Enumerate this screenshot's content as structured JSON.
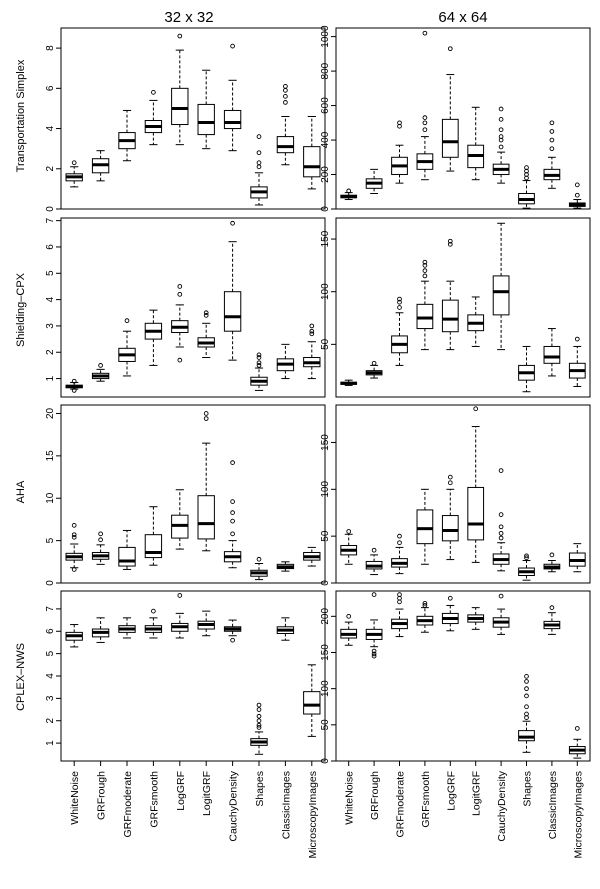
{
  "figure": {
    "column_titles": [
      "32 x 32",
      "64 x 64"
    ],
    "row_labels": [
      "Transportation Simplex",
      "Shielding–CPX",
      "AHA",
      "CPLEX–NWS"
    ],
    "categories": [
      "WhiteNoise",
      "GRFrough",
      "GRFmoderate",
      "GRFsmooth",
      "LogGRF",
      "LogitGRF",
      "CauchyDensity",
      "Shapes",
      "ClassicImages",
      "MicroscopyImages"
    ]
  },
  "chart_data": [
    {
      "type": "boxplot",
      "row": "Transportation Simplex",
      "column": "32 x 32",
      "ylim": [
        0,
        9
      ],
      "yticks": [
        0,
        2,
        4,
        6,
        8
      ],
      "boxes": [
        {
          "q1": 1.4,
          "median": 1.6,
          "q3": 1.75,
          "whisker_low": 1.1,
          "whisker_high": 2.1,
          "outliers": [
            2.3
          ]
        },
        {
          "q1": 1.8,
          "median": 2.2,
          "q3": 2.5,
          "whisker_low": 1.4,
          "whisker_high": 2.9,
          "outliers": []
        },
        {
          "q1": 3.0,
          "median": 3.4,
          "q3": 3.8,
          "whisker_low": 2.4,
          "whisker_high": 4.9,
          "outliers": []
        },
        {
          "q1": 3.8,
          "median": 4.1,
          "q3": 4.4,
          "whisker_low": 3.2,
          "whisker_high": 5.4,
          "outliers": [
            5.8
          ]
        },
        {
          "q1": 4.2,
          "median": 5.0,
          "q3": 6.0,
          "whisker_low": 3.2,
          "whisker_high": 7.9,
          "outliers": [
            8.6
          ]
        },
        {
          "q1": 3.7,
          "median": 4.3,
          "q3": 5.2,
          "whisker_low": 3.0,
          "whisker_high": 6.9,
          "outliers": []
        },
        {
          "q1": 4.0,
          "median": 4.3,
          "q3": 4.9,
          "whisker_low": 2.9,
          "whisker_high": 6.4,
          "outliers": [
            8.1
          ]
        },
        {
          "q1": 0.55,
          "median": 0.85,
          "q3": 1.1,
          "whisker_low": 0.2,
          "whisker_high": 1.8,
          "outliers": [
            2.1,
            2.3,
            2.8,
            3.6
          ]
        },
        {
          "q1": 2.8,
          "median": 3.1,
          "q3": 3.6,
          "whisker_low": 2.2,
          "whisker_high": 4.6,
          "outliers": [
            5.3,
            5.6,
            5.9,
            6.1
          ]
        },
        {
          "q1": 1.6,
          "median": 2.1,
          "q3": 3.1,
          "whisker_low": 1.0,
          "whisker_high": 4.6,
          "outliers": []
        }
      ]
    },
    {
      "type": "boxplot",
      "row": "Transportation Simplex",
      "column": "64 x 64",
      "ylim": [
        0,
        1050
      ],
      "yticks": [
        0,
        200,
        400,
        600,
        800,
        1000
      ],
      "boxes": [
        {
          "q1": 65,
          "median": 72,
          "q3": 80,
          "whisker_low": 55,
          "whisker_high": 95,
          "outliers": [
            105
          ]
        },
        {
          "q1": 120,
          "median": 150,
          "q3": 175,
          "whisker_low": 90,
          "whisker_high": 230,
          "outliers": []
        },
        {
          "q1": 200,
          "median": 250,
          "q3": 300,
          "whisker_low": 150,
          "whisker_high": 370,
          "outliers": [
            480,
            500
          ]
        },
        {
          "q1": 230,
          "median": 275,
          "q3": 320,
          "whisker_low": 170,
          "whisker_high": 420,
          "outliers": [
            460,
            500,
            530,
            1020
          ]
        },
        {
          "q1": 300,
          "median": 390,
          "q3": 520,
          "whisker_low": 220,
          "whisker_high": 780,
          "outliers": [
            930
          ]
        },
        {
          "q1": 240,
          "median": 310,
          "q3": 370,
          "whisker_low": 170,
          "whisker_high": 590,
          "outliers": []
        },
        {
          "q1": 200,
          "median": 230,
          "q3": 260,
          "whisker_low": 150,
          "whisker_high": 330,
          "outliers": [
            360,
            400,
            420,
            460,
            520,
            580
          ]
        },
        {
          "q1": 30,
          "median": 55,
          "q3": 90,
          "whisker_low": 5,
          "whisker_high": 165,
          "outliers": [
            180,
            200,
            220,
            240
          ]
        },
        {
          "q1": 170,
          "median": 195,
          "q3": 230,
          "whisker_low": 120,
          "whisker_high": 300,
          "outliers": [
            350,
            400,
            450,
            500
          ]
        },
        {
          "q1": 15,
          "median": 25,
          "q3": 35,
          "whisker_low": 5,
          "whisker_high": 55,
          "outliers": [
            80,
            140
          ]
        }
      ]
    },
    {
      "type": "boxplot",
      "row": "Shielding–CPX",
      "column": "32 x 32",
      "ylim": [
        0.3,
        7.1
      ],
      "yticks": [
        1,
        2,
        3,
        4,
        5,
        6,
        7
      ],
      "boxes": [
        {
          "q1": 0.65,
          "median": 0.7,
          "q3": 0.75,
          "whisker_low": 0.6,
          "whisker_high": 0.85,
          "outliers": [
            0.55,
            0.9
          ]
        },
        {
          "q1": 1.0,
          "median": 1.1,
          "q3": 1.2,
          "whisker_low": 0.9,
          "whisker_high": 1.35,
          "outliers": [
            1.5
          ]
        },
        {
          "q1": 1.65,
          "median": 1.9,
          "q3": 2.15,
          "whisker_low": 1.1,
          "whisker_high": 2.8,
          "outliers": [
            3.2
          ]
        },
        {
          "q1": 2.5,
          "median": 2.8,
          "q3": 3.1,
          "whisker_low": 1.5,
          "whisker_high": 3.6,
          "outliers": []
        },
        {
          "q1": 2.75,
          "median": 2.95,
          "q3": 3.2,
          "whisker_low": 2.2,
          "whisker_high": 3.8,
          "outliers": [
            1.7,
            4.2,
            4.5
          ]
        },
        {
          "q1": 2.2,
          "median": 2.35,
          "q3": 2.55,
          "whisker_low": 1.8,
          "whisker_high": 3.1,
          "outliers": [
            3.4,
            3.5
          ]
        },
        {
          "q1": 2.8,
          "median": 3.35,
          "q3": 4.3,
          "whisker_low": 1.7,
          "whisker_high": 6.2,
          "outliers": [
            6.9
          ]
        },
        {
          "q1": 0.75,
          "median": 0.9,
          "q3": 1.05,
          "whisker_low": 0.55,
          "whisker_high": 1.4,
          "outliers": [
            1.5,
            1.6,
            1.8,
            1.9
          ]
        },
        {
          "q1": 1.3,
          "median": 1.55,
          "q3": 1.75,
          "whisker_low": 1.0,
          "whisker_high": 2.3,
          "outliers": []
        },
        {
          "q1": 1.45,
          "median": 1.6,
          "q3": 1.8,
          "whisker_low": 1.0,
          "whisker_high": 2.4,
          "outliers": [
            2.7,
            2.8,
            3.0
          ]
        }
      ]
    },
    {
      "type": "boxplot",
      "row": "Shielding–CPX",
      "column": "64 x 64",
      "ylim": [
        0,
        170
      ],
      "yticks": [
        50,
        100,
        150
      ],
      "boxes": [
        {
          "q1": 12,
          "median": 13,
          "q3": 14,
          "whisker_low": 11,
          "whisker_high": 16,
          "outliers": []
        },
        {
          "q1": 21,
          "median": 23,
          "q3": 25,
          "whisker_low": 18,
          "whisker_high": 30,
          "outliers": [
            32
          ]
        },
        {
          "q1": 42,
          "median": 50,
          "q3": 58,
          "whisker_low": 30,
          "whisker_high": 80,
          "outliers": [
            85,
            90,
            93
          ]
        },
        {
          "q1": 65,
          "median": 75,
          "q3": 88,
          "whisker_low": 45,
          "whisker_high": 110,
          "outliers": [
            115,
            120,
            125,
            128
          ]
        },
        {
          "q1": 62,
          "median": 74,
          "q3": 92,
          "whisker_low": 45,
          "whisker_high": 110,
          "outliers": [
            145,
            148
          ]
        },
        {
          "q1": 63,
          "median": 70,
          "q3": 78,
          "whisker_low": 48,
          "whisker_high": 95,
          "outliers": []
        },
        {
          "q1": 78,
          "median": 100,
          "q3": 115,
          "whisker_low": 45,
          "whisker_high": 165,
          "outliers": []
        },
        {
          "q1": 16,
          "median": 23,
          "q3": 30,
          "whisker_low": 5,
          "whisker_high": 48,
          "outliers": []
        },
        {
          "q1": 32,
          "median": 38,
          "q3": 48,
          "whisker_low": 20,
          "whisker_high": 65,
          "outliers": []
        },
        {
          "q1": 18,
          "median": 25,
          "q3": 32,
          "whisker_low": 10,
          "whisker_high": 48,
          "outliers": [
            55
          ]
        }
      ]
    },
    {
      "type": "boxplot",
      "row": "AHA",
      "column": "32 x 32",
      "ylim": [
        0,
        21
      ],
      "yticks": [
        0,
        5,
        10,
        15,
        20
      ],
      "boxes": [
        {
          "q1": 2.7,
          "median": 3.1,
          "q3": 3.5,
          "whisker_low": 1.8,
          "whisker_high": 4.6,
          "outliers": [
            1.6,
            5.4,
            5.7,
            6.8
          ]
        },
        {
          "q1": 2.8,
          "median": 3.2,
          "q3": 3.6,
          "whisker_low": 2.2,
          "whisker_high": 4.5,
          "outliers": [
            5.1,
            5.8
          ]
        },
        {
          "q1": 2.0,
          "median": 2.6,
          "q3": 4.2,
          "whisker_low": 1.6,
          "whisker_high": 6.2,
          "outliers": []
        },
        {
          "q1": 3.0,
          "median": 3.6,
          "q3": 5.7,
          "whisker_low": 2.1,
          "whisker_high": 9.0,
          "outliers": []
        },
        {
          "q1": 5.3,
          "median": 6.8,
          "q3": 8.0,
          "whisker_low": 4.0,
          "whisker_high": 11.0,
          "outliers": []
        },
        {
          "q1": 5.2,
          "median": 7.0,
          "q3": 10.3,
          "whisker_low": 3.8,
          "whisker_high": 16.5,
          "outliers": [
            19.4,
            20.0
          ]
        },
        {
          "q1": 2.5,
          "median": 3.1,
          "q3": 3.7,
          "whisker_low": 1.8,
          "whisker_high": 5.0,
          "outliers": [
            5.8,
            7.3,
            8.3,
            9.6,
            14.2
          ]
        },
        {
          "q1": 0.8,
          "median": 1.2,
          "q3": 1.5,
          "whisker_low": 0.4,
          "whisker_high": 2.3,
          "outliers": [
            2.8
          ]
        },
        {
          "q1": 1.7,
          "median": 1.9,
          "q3": 2.2,
          "whisker_low": 1.4,
          "whisker_high": 2.5,
          "outliers": []
        },
        {
          "q1": 2.7,
          "median": 3.1,
          "q3": 3.6,
          "whisker_low": 2.0,
          "whisker_high": 4.2,
          "outliers": []
        }
      ]
    },
    {
      "type": "boxplot",
      "row": "AHA",
      "column": "64 x 64",
      "ylim": [
        0,
        190
      ],
      "yticks": [
        0,
        50,
        100,
        150
      ],
      "boxes": [
        {
          "q1": 30,
          "median": 35,
          "q3": 40,
          "whisker_low": 20,
          "whisker_high": 52,
          "outliers": [
            55
          ]
        },
        {
          "q1": 15,
          "median": 18,
          "q3": 23,
          "whisker_low": 9,
          "whisker_high": 30,
          "outliers": [
            35
          ]
        },
        {
          "q1": 17,
          "median": 21,
          "q3": 26,
          "whisker_low": 10,
          "whisker_high": 38,
          "outliers": [
            43,
            50
          ]
        },
        {
          "q1": 42,
          "median": 58,
          "q3": 78,
          "whisker_low": 20,
          "whisker_high": 100,
          "outliers": []
        },
        {
          "q1": 45,
          "median": 56,
          "q3": 72,
          "whisker_low": 25,
          "whisker_high": 100,
          "outliers": [
            107,
            113
          ]
        },
        {
          "q1": 46,
          "median": 63,
          "q3": 102,
          "whisker_low": 22,
          "whisker_high": 167,
          "outliers": [
            186
          ]
        },
        {
          "q1": 20,
          "median": 25,
          "q3": 31,
          "whisker_low": 13,
          "whisker_high": 43,
          "outliers": [
            48,
            53,
            60,
            73,
            120
          ]
        },
        {
          "q1": 8,
          "median": 12,
          "q3": 16,
          "whisker_low": 3,
          "whisker_high": 24,
          "outliers": [
            27,
            29
          ]
        },
        {
          "q1": 15,
          "median": 17,
          "q3": 20,
          "whisker_low": 12,
          "whisker_high": 24,
          "outliers": [
            30
          ]
        },
        {
          "q1": 18,
          "median": 24,
          "q3": 32,
          "whisker_low": 12,
          "whisker_high": 42,
          "outliers": []
        }
      ]
    },
    {
      "type": "boxplot",
      "row": "CPLEX–NWS",
      "column": "32 x 32",
      "ylim": [
        0.2,
        7.8
      ],
      "yticks": [
        1,
        2,
        3,
        4,
        5,
        6,
        7
      ],
      "boxes": [
        {
          "q1": 5.6,
          "median": 5.8,
          "q3": 5.95,
          "whisker_low": 5.3,
          "whisker_high": 6.3,
          "outliers": []
        },
        {
          "q1": 5.75,
          "median": 5.95,
          "q3": 6.1,
          "whisker_low": 5.5,
          "whisker_high": 6.6,
          "outliers": []
        },
        {
          "q1": 5.95,
          "median": 6.1,
          "q3": 6.25,
          "whisker_low": 5.7,
          "whisker_high": 6.6,
          "outliers": []
        },
        {
          "q1": 5.95,
          "median": 6.1,
          "q3": 6.25,
          "whisker_low": 5.7,
          "whisker_high": 6.6,
          "outliers": [
            6.9
          ]
        },
        {
          "q1": 6.0,
          "median": 6.2,
          "q3": 6.35,
          "whisker_low": 5.7,
          "whisker_high": 6.8,
          "outliers": [
            7.6
          ]
        },
        {
          "q1": 6.1,
          "median": 6.3,
          "q3": 6.45,
          "whisker_low": 5.8,
          "whisker_high": 6.9,
          "outliers": []
        },
        {
          "q1": 6.0,
          "median": 6.1,
          "q3": 6.2,
          "whisker_low": 5.8,
          "whisker_high": 6.5,
          "outliers": [
            5.6
          ]
        },
        {
          "q1": 0.9,
          "median": 1.05,
          "q3": 1.2,
          "whisker_low": 0.5,
          "whisker_high": 1.5,
          "outliers": [
            1.7,
            1.8,
            2.0,
            2.2,
            2.5,
            2.7
          ]
        },
        {
          "q1": 5.9,
          "median": 6.05,
          "q3": 6.2,
          "whisker_low": 5.6,
          "whisker_high": 6.6,
          "outliers": []
        },
        {
          "q1": 2.3,
          "median": 2.7,
          "q3": 3.3,
          "whisker_low": 1.3,
          "whisker_high": 4.5,
          "outliers": []
        }
      ]
    },
    {
      "type": "boxplot",
      "row": "CPLEX–NWS",
      "column": "64 x 64",
      "ylim": [
        0,
        235
      ],
      "yticks": [
        0,
        50,
        100,
        150,
        200
      ],
      "boxes": [
        {
          "q1": 170,
          "median": 175,
          "q3": 182,
          "whisker_low": 160,
          "whisker_high": 192,
          "outliers": [
            200
          ]
        },
        {
          "q1": 168,
          "median": 175,
          "q3": 182,
          "whisker_low": 158,
          "whisker_high": 195,
          "outliers": [
            145,
            148,
            152,
            230
          ]
        },
        {
          "q1": 183,
          "median": 190,
          "q3": 196,
          "whisker_low": 172,
          "whisker_high": 210,
          "outliers": [
            220,
            225,
            230
          ]
        },
        {
          "q1": 188,
          "median": 194,
          "q3": 200,
          "whisker_low": 178,
          "whisker_high": 212,
          "outliers": [
            215,
            218
          ]
        },
        {
          "q1": 190,
          "median": 197,
          "q3": 204,
          "whisker_low": 180,
          "whisker_high": 215,
          "outliers": [
            225
          ]
        },
        {
          "q1": 192,
          "median": 197,
          "q3": 202,
          "whisker_low": 182,
          "whisker_high": 212,
          "outliers": []
        },
        {
          "q1": 185,
          "median": 192,
          "q3": 198,
          "whisker_low": 175,
          "whisker_high": 210,
          "outliers": [
            228
          ]
        },
        {
          "q1": 28,
          "median": 33,
          "q3": 42,
          "whisker_low": 12,
          "whisker_high": 55,
          "outliers": [
            60,
            65,
            75,
            90,
            100,
            110,
            117
          ]
        },
        {
          "q1": 183,
          "median": 188,
          "q3": 193,
          "whisker_low": 175,
          "whisker_high": 205,
          "outliers": [
            212
          ]
        },
        {
          "q1": 10,
          "median": 15,
          "q3": 20,
          "whisker_low": 4,
          "whisker_high": 30,
          "outliers": [
            45
          ]
        }
      ]
    }
  ]
}
